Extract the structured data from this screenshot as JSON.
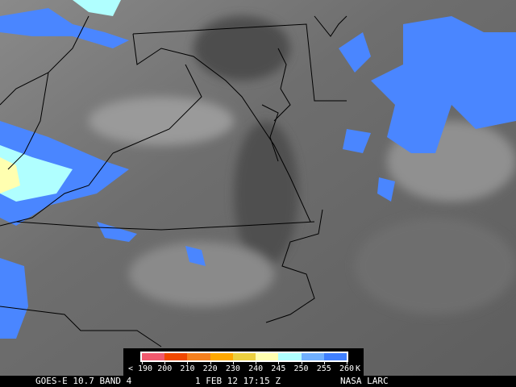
{
  "footer": {
    "satellite": "GOES-E 10.7 BAND 4",
    "datetime": "1 FEB 12 17:15 Z",
    "source": "NASA LARC"
  },
  "legend": {
    "less_than": "<",
    "labels": [
      "190",
      "200",
      "210",
      "220",
      "230",
      "240",
      "245",
      "250",
      "255",
      "260"
    ],
    "unit": "K",
    "colors": [
      "#f05a6e",
      "#f04800",
      "#f5801e",
      "#ffa800",
      "#ecd040",
      "#ffffb0",
      "#b0ffff",
      "#70b0ff",
      "#4080ff"
    ]
  },
  "map_colors": {
    "cloud_cold": "#4a86ff",
    "cloud_colder": "#b0ffff",
    "border": "#000000"
  }
}
